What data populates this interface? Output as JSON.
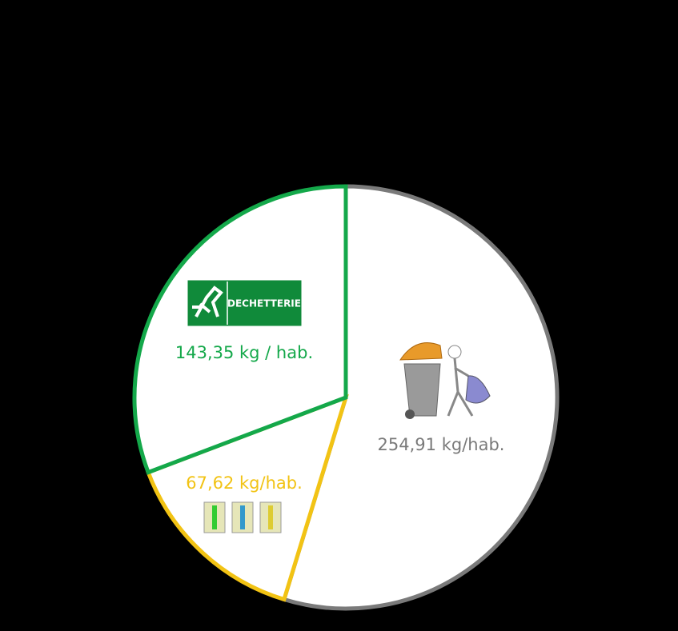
{
  "chart_data": {
    "type": "pie",
    "values": [
      254.91,
      67.62,
      143.35
    ],
    "value_labels": [
      "254,91 kg/hab.",
      "67,62 kg/hab.",
      "143,35 kg / hab."
    ],
    "colors": [
      "#7a7a7a",
      "#f2c314",
      "#14a84a"
    ],
    "sign_text": "DECHETTERIE"
  }
}
